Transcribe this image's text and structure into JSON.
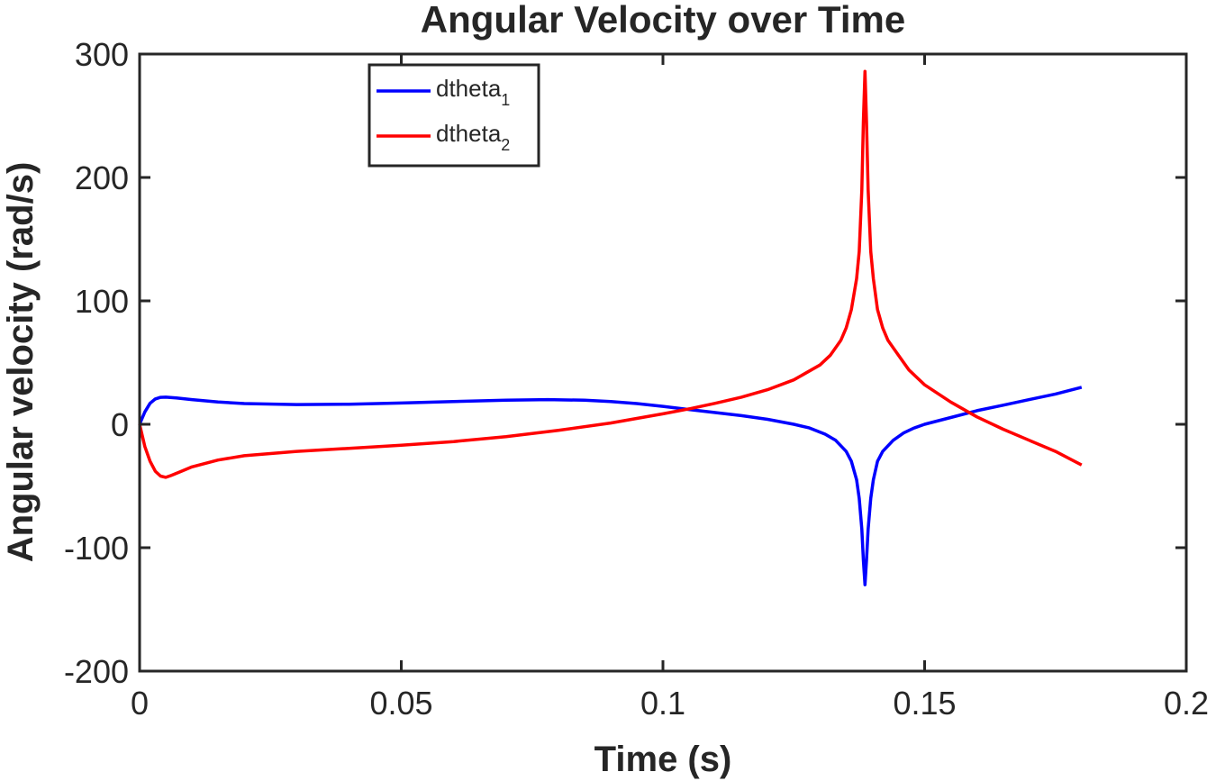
{
  "chart_data": {
    "type": "line",
    "title": "Angular Velocity over Time",
    "xlabel": "Time (s)",
    "ylabel": "Angular velocity (rad/s)",
    "xlim": [
      0,
      0.2
    ],
    "ylim": [
      -200,
      300
    ],
    "x_ticks": [
      0,
      0.05,
      0.1,
      0.15,
      0.2
    ],
    "x_tick_labels": [
      "0",
      "0.05",
      "0.1",
      "0.15",
      "0.2"
    ],
    "y_ticks": [
      -200,
      -100,
      0,
      100,
      200,
      300
    ],
    "y_tick_labels": [
      "-200",
      "-100",
      "0",
      "100",
      "200",
      "300"
    ],
    "grid": false,
    "legend_position": "top-left",
    "series": [
      {
        "name": "dtheta",
        "subscript": "1",
        "color": "#0000ff",
        "points": [
          [
            0,
            0
          ],
          [
            0.001,
            10
          ],
          [
            0.002,
            17
          ],
          [
            0.003,
            20.5
          ],
          [
            0.004,
            21.8
          ],
          [
            0.005,
            22
          ],
          [
            0.007,
            21.3
          ],
          [
            0.01,
            20
          ],
          [
            0.015,
            18
          ],
          [
            0.02,
            16.8
          ],
          [
            0.03,
            16
          ],
          [
            0.04,
            16.3
          ],
          [
            0.05,
            17.2
          ],
          [
            0.06,
            18.5
          ],
          [
            0.07,
            19.5
          ],
          [
            0.078,
            20
          ],
          [
            0.085,
            19.5
          ],
          [
            0.09,
            18.5
          ],
          [
            0.095,
            16.8
          ],
          [
            0.1,
            14.5
          ],
          [
            0.105,
            12
          ],
          [
            0.11,
            9.5
          ],
          [
            0.115,
            7
          ],
          [
            0.12,
            4
          ],
          [
            0.125,
            0
          ],
          [
            0.128,
            -3
          ],
          [
            0.131,
            -8
          ],
          [
            0.133,
            -13
          ],
          [
            0.135,
            -22
          ],
          [
            0.136,
            -30
          ],
          [
            0.137,
            -45
          ],
          [
            0.1375,
            -60
          ],
          [
            0.138,
            -85
          ],
          [
            0.1383,
            -110
          ],
          [
            0.1386,
            -130
          ],
          [
            0.1389,
            -110
          ],
          [
            0.1392,
            -85
          ],
          [
            0.1397,
            -60
          ],
          [
            0.1402,
            -45
          ],
          [
            0.141,
            -30
          ],
          [
            0.142,
            -22
          ],
          [
            0.144,
            -13
          ],
          [
            0.146,
            -7
          ],
          [
            0.148,
            -3
          ],
          [
            0.15,
            0
          ],
          [
            0.155,
            5.5
          ],
          [
            0.16,
            11
          ],
          [
            0.165,
            15.5
          ],
          [
            0.17,
            20
          ],
          [
            0.175,
            24.5
          ],
          [
            0.18,
            30
          ]
        ]
      },
      {
        "name": "dtheta",
        "subscript": "2",
        "color": "#ff0000",
        "points": [
          [
            0,
            0
          ],
          [
            0.001,
            -18
          ],
          [
            0.002,
            -30
          ],
          [
            0.003,
            -38
          ],
          [
            0.004,
            -42
          ],
          [
            0.005,
            -43
          ],
          [
            0.006,
            -41.5
          ],
          [
            0.008,
            -38
          ],
          [
            0.01,
            -34.5
          ],
          [
            0.015,
            -29
          ],
          [
            0.02,
            -25.5
          ],
          [
            0.03,
            -22
          ],
          [
            0.04,
            -19.5
          ],
          [
            0.05,
            -17
          ],
          [
            0.06,
            -14
          ],
          [
            0.07,
            -10
          ],
          [
            0.08,
            -5
          ],
          [
            0.09,
            1
          ],
          [
            0.1,
            8.5
          ],
          [
            0.105,
            12.5
          ],
          [
            0.11,
            17
          ],
          [
            0.115,
            22
          ],
          [
            0.12,
            28
          ],
          [
            0.125,
            36
          ],
          [
            0.13,
            48
          ],
          [
            0.132,
            56
          ],
          [
            0.134,
            68
          ],
          [
            0.135,
            78
          ],
          [
            0.136,
            93
          ],
          [
            0.137,
            118
          ],
          [
            0.1375,
            140
          ],
          [
            0.138,
            190
          ],
          [
            0.1383,
            245
          ],
          [
            0.1386,
            286
          ],
          [
            0.1389,
            245
          ],
          [
            0.1392,
            190
          ],
          [
            0.1397,
            140
          ],
          [
            0.1402,
            118
          ],
          [
            0.141,
            93
          ],
          [
            0.142,
            78
          ],
          [
            0.143,
            68
          ],
          [
            0.145,
            56
          ],
          [
            0.147,
            44
          ],
          [
            0.15,
            32
          ],
          [
            0.155,
            18
          ],
          [
            0.16,
            6
          ],
          [
            0.165,
            -4
          ],
          [
            0.17,
            -13
          ],
          [
            0.175,
            -22
          ],
          [
            0.18,
            -33
          ]
        ]
      }
    ]
  }
}
